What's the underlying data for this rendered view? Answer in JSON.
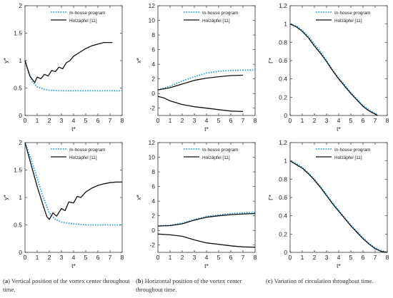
{
  "captions": [
    {
      "letter": "a",
      "text": "Vertical position of the vortex center throughout time."
    },
    {
      "letter": "b",
      "text": "Horizontal position of the vortex center throughout time."
    },
    {
      "letter": "c",
      "text": "Variation of circulation throughout time."
    }
  ],
  "colors": {
    "in_house": "#2a9fd6",
    "reference": "#111111"
  },
  "chart_data": [
    {
      "type": "line",
      "xlabel": "t*",
      "ylabel": "y*",
      "xlim": [
        0,
        8
      ],
      "ylim": [
        0,
        2
      ],
      "xticks": [
        "0",
        "1",
        "2",
        "3",
        "4",
        "5",
        "6",
        "7",
        "8"
      ],
      "yticks": [
        "0",
        "0.5",
        "1",
        "1.5",
        "2"
      ],
      "legend": "top-right",
      "grid": false,
      "series": [
        {
          "name": "In-house program",
          "style": "dotted",
          "x": [
            0,
            0.3,
            0.6,
            1,
            1.5,
            2,
            3,
            4,
            5,
            6,
            7,
            8
          ],
          "y": [
            1.0,
            0.78,
            0.62,
            0.52,
            0.48,
            0.46,
            0.45,
            0.45,
            0.45,
            0.45,
            0.45,
            0.45
          ]
        },
        {
          "name": "Holzäpfel [11]",
          "style": "solid",
          "x": [
            0,
            0.4,
            0.8,
            1.0,
            1.3,
            1.6,
            1.9,
            2.2,
            2.5,
            2.8,
            3.1,
            3.4,
            3.7,
            4.0,
            4.5,
            5,
            5.5,
            6,
            6.5,
            7,
            7.2
          ],
          "y": [
            1.0,
            0.72,
            0.6,
            0.7,
            0.67,
            0.75,
            0.72,
            0.82,
            0.8,
            0.88,
            0.85,
            0.96,
            1.0,
            1.08,
            1.15,
            1.22,
            1.27,
            1.3,
            1.33,
            1.33,
            1.33
          ]
        }
      ]
    },
    {
      "type": "line",
      "xlabel": "t*",
      "ylabel": "x*",
      "xlim": [
        0,
        8
      ],
      "ylim": [
        -3,
        12
      ],
      "xticks": [
        "0",
        "1",
        "2",
        "3",
        "4",
        "5",
        "6",
        "7",
        "8"
      ],
      "yticks": [
        "-2",
        "0",
        "2",
        "4",
        "6",
        "8",
        "10",
        "12"
      ],
      "legend": "top-right",
      "grid": false,
      "series": [
        {
          "name": "In-house program",
          "style": "dotted",
          "x": [
            0,
            1,
            2,
            3,
            4,
            5,
            6,
            7,
            8
          ],
          "y": [
            0.5,
            1.0,
            1.7,
            2.3,
            2.8,
            3.05,
            3.15,
            3.2,
            3.2
          ]
        },
        {
          "name": "Holzäpfel [11]",
          "style": "solid",
          "x": [
            0,
            1,
            2,
            3,
            4,
            5,
            6,
            7
          ],
          "y": [
            0.5,
            0.8,
            1.3,
            1.8,
            2.1,
            2.3,
            2.45,
            2.5
          ]
        },
        {
          "name": "",
          "style": "solid",
          "x": [
            0,
            0.5,
            1,
            2,
            3,
            4,
            5,
            6,
            7
          ],
          "y": [
            -0.4,
            -0.6,
            -1.0,
            -1.5,
            -1.8,
            -2.0,
            -2.2,
            -2.4,
            -2.45
          ]
        }
      ]
    },
    {
      "type": "line",
      "xlabel": "t*",
      "ylabel": "Γ*",
      "xlim": [
        0,
        8
      ],
      "ylim": [
        0,
        1.2
      ],
      "xticks": [
        "0",
        "1",
        "2",
        "3",
        "4",
        "5",
        "6",
        "7",
        "8"
      ],
      "yticks": [
        "0",
        "0.2",
        "0.4",
        "0.6",
        "0.8",
        "1",
        "1.2"
      ],
      "legend": "top-right",
      "grid": false,
      "series": [
        {
          "name": "In-house program",
          "style": "dotted",
          "x": [
            0,
            0.5,
            1,
            1.5,
            2,
            2.5,
            3,
            3.5,
            4,
            4.5,
            5,
            5.5,
            6,
            6.5,
            7,
            7.2
          ],
          "y": [
            1.0,
            0.98,
            0.93,
            0.87,
            0.78,
            0.7,
            0.6,
            0.5,
            0.41,
            0.33,
            0.25,
            0.18,
            0.11,
            0.06,
            0.02,
            0.01
          ]
        },
        {
          "name": "Holzäpfel [11]",
          "style": "solid",
          "x": [
            0,
            0.5,
            1,
            1.5,
            2,
            2.5,
            3,
            3.5,
            4,
            4.5,
            5,
            5.5,
            6,
            6.5,
            7,
            7.2
          ],
          "y": [
            1.0,
            0.97,
            0.92,
            0.85,
            0.76,
            0.68,
            0.59,
            0.49,
            0.4,
            0.32,
            0.24,
            0.17,
            0.1,
            0.05,
            0.015,
            0.0
          ]
        }
      ]
    },
    {
      "type": "line",
      "xlabel": "t*",
      "ylabel": "y*",
      "xlim": [
        0,
        8
      ],
      "ylim": [
        0,
        2
      ],
      "xticks": [
        "0",
        "1",
        "2",
        "3",
        "4",
        "5",
        "6",
        "7",
        "8"
      ],
      "yticks": [
        "0",
        "0.5",
        "1",
        "1.5",
        "2"
      ],
      "legend": "top-right",
      "grid": false,
      "series": [
        {
          "name": "In-house program",
          "style": "dotted",
          "x": [
            0,
            0.5,
            1,
            1.5,
            2,
            2.5,
            3,
            4,
            5,
            6,
            7,
            8
          ],
          "y": [
            2.0,
            1.7,
            1.35,
            1.0,
            0.72,
            0.6,
            0.55,
            0.52,
            0.5,
            0.5,
            0.5,
            0.5
          ]
        },
        {
          "name": "Holzäpfel [11]",
          "style": "solid",
          "x": [
            0,
            0.5,
            1,
            1.5,
            1.8,
            2.0,
            2.3,
            2.6,
            3.0,
            3.3,
            3.6,
            4.0,
            4.3,
            4.6,
            5,
            5.5,
            6,
            6.5,
            7,
            7.5,
            8
          ],
          "y": [
            2.0,
            1.6,
            1.2,
            0.85,
            0.65,
            0.6,
            0.72,
            0.66,
            0.8,
            0.76,
            0.92,
            0.9,
            1.02,
            1.0,
            1.1,
            1.17,
            1.22,
            1.25,
            1.27,
            1.28,
            1.28
          ]
        }
      ]
    },
    {
      "type": "line",
      "xlabel": "t*",
      "ylabel": "x*",
      "xlim": [
        0,
        8
      ],
      "ylim": [
        -3,
        12
      ],
      "xticks": [
        "0",
        "1",
        "2",
        "3",
        "4",
        "5",
        "6",
        "7",
        "8"
      ],
      "yticks": [
        "-2",
        "0",
        "2",
        "4",
        "6",
        "8",
        "10",
        "12"
      ],
      "legend": "top-right",
      "grid": false,
      "series": [
        {
          "name": "In-house program",
          "style": "dotted",
          "x": [
            0,
            1,
            2,
            3,
            4,
            5,
            6,
            7,
            8
          ],
          "y": [
            0.6,
            0.7,
            1.0,
            1.5,
            1.9,
            2.1,
            2.3,
            2.4,
            2.45
          ]
        },
        {
          "name": "Holzäpfel [11]",
          "style": "solid",
          "x": [
            0,
            1,
            2,
            3,
            4,
            5,
            6,
            7,
            8
          ],
          "y": [
            0.6,
            0.65,
            0.9,
            1.4,
            1.8,
            2.0,
            2.15,
            2.25,
            2.3
          ]
        },
        {
          "name": "",
          "style": "solid",
          "x": [
            0,
            1,
            2,
            3,
            4,
            5,
            6,
            7,
            8
          ],
          "y": [
            -0.5,
            -0.6,
            -0.8,
            -1.3,
            -1.7,
            -1.9,
            -2.1,
            -2.25,
            -2.3
          ]
        }
      ]
    },
    {
      "type": "line",
      "xlabel": "t*",
      "ylabel": "Γ*",
      "xlim": [
        0,
        8
      ],
      "ylim": [
        0,
        1.2
      ],
      "xticks": [
        "0",
        "1",
        "2",
        "3",
        "4",
        "5",
        "6",
        "7",
        "8"
      ],
      "yticks": [
        "0",
        "0.2",
        "0.4",
        "0.6",
        "0.8",
        "1",
        "1.2"
      ],
      "legend": "top-right",
      "grid": false,
      "series": [
        {
          "name": "In-house program",
          "style": "dotted",
          "x": [
            0,
            0.5,
            1,
            1.5,
            2,
            2.5,
            3,
            3.5,
            4,
            4.5,
            5,
            5.5,
            6,
            6.5,
            7,
            7.5,
            8
          ],
          "y": [
            1.0,
            0.97,
            0.93,
            0.87,
            0.8,
            0.72,
            0.63,
            0.54,
            0.46,
            0.38,
            0.3,
            0.23,
            0.16,
            0.1,
            0.05,
            0.02,
            0.0
          ]
        },
        {
          "name": "Holzäpfel [11]",
          "style": "solid",
          "x": [
            0,
            0.5,
            1,
            1.5,
            2,
            2.5,
            3,
            3.5,
            4,
            4.5,
            5,
            5.5,
            6,
            6.5,
            7,
            7.5,
            8
          ],
          "y": [
            1.0,
            0.96,
            0.92,
            0.86,
            0.79,
            0.71,
            0.62,
            0.53,
            0.45,
            0.37,
            0.29,
            0.22,
            0.15,
            0.09,
            0.04,
            0.01,
            0.0
          ]
        }
      ]
    }
  ]
}
